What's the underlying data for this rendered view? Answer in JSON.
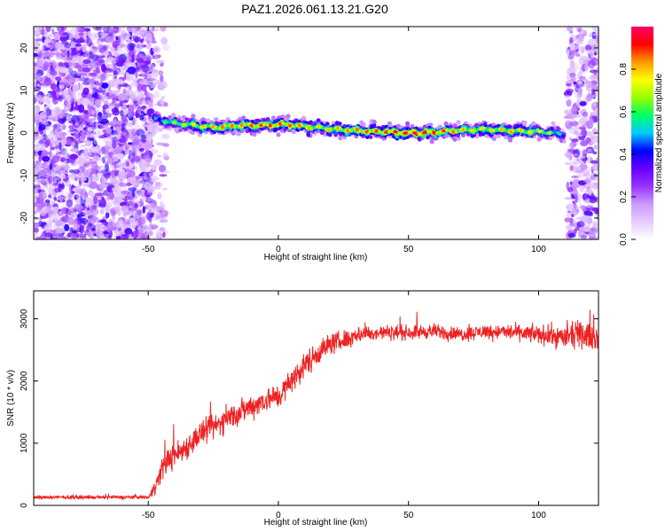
{
  "figure": {
    "title": "PAZ1.2026.061.13.21.G20"
  },
  "chart_data": [
    {
      "type": "heatmap",
      "name": "spectrogram",
      "xlabel": "Height of straight line (km)",
      "ylabel": "Frequency (Hz)",
      "xlim": [
        -94,
        123
      ],
      "ylim": [
        -25,
        25
      ],
      "xticks": [
        -50,
        0,
        50,
        100
      ],
      "yticks": [
        -20,
        -10,
        0,
        10,
        20
      ],
      "noise_region_left": [
        -94,
        -48
      ],
      "noise_region_right": [
        111,
        123
      ],
      "ridge": {
        "description_values": "frequency (Hz) of the dominant spectral line vs height (km)",
        "x": [
          -48,
          -45,
          -40,
          -35,
          -30,
          -25,
          -20,
          -15,
          -10,
          -5,
          0,
          5,
          10,
          15,
          20,
          25,
          30,
          35,
          40,
          45,
          50,
          55,
          60,
          65,
          70,
          75,
          80,
          85,
          90,
          95,
          100,
          105,
          110
        ],
        "y": [
          3.5,
          3.0,
          2.3,
          2.0,
          1.6,
          1.4,
          1.5,
          1.8,
          1.7,
          1.8,
          2.0,
          1.9,
          1.5,
          1.3,
          1.0,
          0.8,
          0.6,
          0.4,
          0.3,
          0.2,
          0.0,
          0.0,
          0.2,
          0.4,
          0.6,
          0.8,
          0.9,
          0.7,
          0.5,
          0.4,
          0.3,
          0.1,
          -0.5
        ],
        "amplitude": [
          0.45,
          0.6,
          0.7,
          0.75,
          0.8,
          0.85,
          0.88,
          0.85,
          0.9,
          0.9,
          0.92,
          0.9,
          0.85,
          0.8,
          0.82,
          0.85,
          0.88,
          0.9,
          0.9,
          0.95,
          1.0,
          1.0,
          0.95,
          0.9,
          0.85,
          0.8,
          0.8,
          0.82,
          0.85,
          0.8,
          0.78,
          0.7,
          0.5
        ]
      },
      "colorbar": {
        "label": "Normalized spectral amplitude",
        "range": [
          0.0,
          1.0
        ],
        "ticks": [
          "0.0",
          "0.2",
          "0.4",
          "0.6",
          "0.8"
        ],
        "colors": [
          "#ffffff",
          "#e6ccff",
          "#cc99ff",
          "#9933ff",
          "#6600ff",
          "#0000ff",
          "#00ccff",
          "#00ff66",
          "#99ff00",
          "#ffff00",
          "#ff9900",
          "#ff0000",
          "#ff0066"
        ]
      }
    },
    {
      "type": "line",
      "name": "snr",
      "xlabel": "Height of straight line (km)",
      "ylabel": "SNR (10 * v/v)",
      "xlim": [
        -94,
        123
      ],
      "ylim": [
        0,
        3450
      ],
      "xticks": [
        -50,
        0,
        50,
        100
      ],
      "yticks": [
        0,
        1000,
        2000,
        3000
      ],
      "color": "#ee2222",
      "series": [
        {
          "name": "SNR",
          "x": [
            -94,
            -85,
            -75,
            -65,
            -55,
            -50,
            -48,
            -46,
            -44,
            -42,
            -40,
            -35,
            -30,
            -25,
            -20,
            -15,
            -10,
            -5,
            0,
            5,
            10,
            15,
            20,
            25,
            30,
            40,
            50,
            60,
            70,
            80,
            90,
            100,
            110,
            115,
            123
          ],
          "y": [
            130,
            130,
            130,
            130,
            135,
            130,
            250,
            450,
            650,
            750,
            800,
            950,
            1150,
            1250,
            1400,
            1500,
            1600,
            1700,
            1750,
            2000,
            2250,
            2450,
            2600,
            2650,
            2750,
            2780,
            2780,
            2800,
            2750,
            2800,
            2780,
            2750,
            2700,
            2750,
            2700
          ],
          "noise_amplitude": [
            40,
            40,
            40,
            40,
            40,
            40,
            150,
            250,
            300,
            300,
            300,
            300,
            300,
            300,
            300,
            300,
            300,
            300,
            300,
            300,
            300,
            300,
            250,
            250,
            200,
            180,
            170,
            170,
            170,
            170,
            180,
            220,
            280,
            300,
            300
          ]
        }
      ]
    }
  ]
}
